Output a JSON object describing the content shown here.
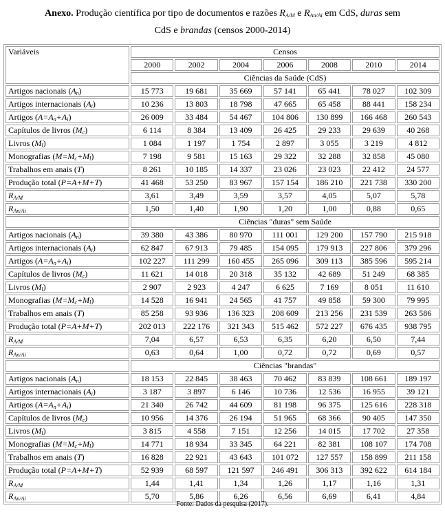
{
  "title": {
    "bold": "Anexo.",
    "line1_a": " Produção científica por tipo de documentos e razões ",
    "r1": "R",
    "r1_sub": "A/M",
    "mid": " e ",
    "r2": "R",
    "r2_sub": "An/Ai",
    "line1_b": " em CdS, ",
    "duras": "duras",
    "line1_c": " sem",
    "line2_a": "CdS e ",
    "brandas": "brandas",
    "line2_b": " (censos 2000-2014)"
  },
  "table": {
    "variables_header": "Variáveis",
    "census_header": "Censos",
    "years": [
      "2000",
      "2002",
      "2004",
      "2006",
      "2008",
      "2010",
      "2014"
    ],
    "row_labels": [
      [
        [
          "Artigos nacionais (",
          ""
        ],
        [
          "A",
          "i"
        ],
        [
          "n",
          "sub"
        ],
        [
          ")",
          ""
        ]
      ],
      [
        [
          "Artigos internacionais (",
          ""
        ],
        [
          "A",
          "i"
        ],
        [
          "i",
          "sub"
        ],
        [
          ")",
          ""
        ]
      ],
      [
        [
          "Artigos (",
          ""
        ],
        [
          "A=A",
          "i"
        ],
        [
          "n",
          "sub"
        ],
        [
          "+A",
          "i"
        ],
        [
          "i",
          "sub"
        ],
        [
          ")",
          ""
        ]
      ],
      [
        [
          "Capítulos de livros (",
          ""
        ],
        [
          "M",
          "i"
        ],
        [
          "c",
          "sub"
        ],
        [
          ")",
          ""
        ]
      ],
      [
        [
          "Livros (",
          ""
        ],
        [
          "M",
          "i"
        ],
        [
          "l",
          "sub"
        ],
        [
          ")",
          ""
        ]
      ],
      [
        [
          "Monografias (",
          ""
        ],
        [
          "M=M",
          "i"
        ],
        [
          "c",
          "sub"
        ],
        [
          "+M",
          "i"
        ],
        [
          "l",
          "sub"
        ],
        [
          ")",
          ""
        ]
      ],
      [
        [
          "Trabalhos em anais (",
          ""
        ],
        [
          "T",
          "i"
        ],
        [
          ")",
          ""
        ]
      ],
      [
        [
          "Produção total (",
          ""
        ],
        [
          "P=A+M+T",
          "i"
        ],
        [
          ")",
          ""
        ]
      ],
      [
        [
          "R",
          "i"
        ],
        [
          "A/M",
          "sub"
        ]
      ],
      [
        [
          "R",
          "i"
        ],
        [
          "An/Ai",
          "sub"
        ]
      ]
    ],
    "sections": [
      {
        "name": "Ciências da Saúde (CdS)",
        "rows": [
          [
            "15 773",
            "19 681",
            "35 669",
            "57 141",
            "65 441",
            "78 027",
            "102 309"
          ],
          [
            "10 236",
            "13 803",
            "18 798",
            "47 665",
            "65 458",
            "88 441",
            "158 234"
          ],
          [
            "26 009",
            "33 484",
            "54 467",
            "104 806",
            "130 899",
            "166 468",
            "260 543"
          ],
          [
            "6 114",
            "8 384",
            "13 409",
            "26 425",
            "29 233",
            "29 639",
            "40 268"
          ],
          [
            "1 084",
            "1 197",
            "1 754",
            "2 897",
            "3 055",
            "3 219",
            "4 812"
          ],
          [
            "7 198",
            "9 581",
            "15 163",
            "29 322",
            "32 288",
            "32 858",
            "45 080"
          ],
          [
            "8 261",
            "10 185",
            "14 337",
            "23 026",
            "23 023",
            "22 412",
            "24 577"
          ],
          [
            "41 468",
            "53 250",
            "83 967",
            "157 154",
            "186 210",
            "221 738",
            "330 200"
          ],
          [
            "3,61",
            "3,49",
            "3,59",
            "3,57",
            "4,05",
            "5,07",
            "5,78"
          ],
          [
            "1,50",
            "1,40",
            "1,90",
            "1,20",
            "1,00",
            "0,88",
            "0,65"
          ]
        ]
      },
      {
        "name": "Ciências \"duras\" sem Saúde",
        "rows": [
          [
            "39 380",
            "43 386",
            "80 970",
            "111 001",
            "129 200",
            "157 790",
            "215 918"
          ],
          [
            "62 847",
            "67 913",
            "79 485",
            "154 095",
            "179 913",
            "227 806",
            "379 296"
          ],
          [
            "102 227",
            "111 299",
            "160 455",
            "265 096",
            "309 113",
            "385 596",
            "595 214"
          ],
          [
            "11 621",
            "14 018",
            "20 318",
            "35 132",
            "42 689",
            "51 249",
            "68 385"
          ],
          [
            "2 907",
            "2 923",
            "4 247",
            "6 625",
            "7 169",
            "8 051",
            "11 610"
          ],
          [
            "14 528",
            "16 941",
            "24 565",
            "41 757",
            "49 858",
            "59 300",
            "79 995"
          ],
          [
            "85 258",
            "93 936",
            "136 323",
            "208 609",
            "213 256",
            "231 539",
            "263 586"
          ],
          [
            "202 013",
            "222 176",
            "321 343",
            "515 462",
            "572 227",
            "676 435",
            "938 795"
          ],
          [
            "7,04",
            "6,57",
            "6,53",
            "6,35",
            "6,20",
            "6,50",
            "7,44"
          ],
          [
            "0,63",
            "0,64",
            "1,00",
            "0,72",
            "0,72",
            "0,69",
            "0,57"
          ]
        ]
      },
      {
        "name": "Ciências \"brandas\"",
        "rows": [
          [
            "18 153",
            "22 845",
            "38 463",
            "70 462",
            "83 839",
            "108 661",
            "189 197"
          ],
          [
            "3 187",
            "3 897",
            "6 146",
            "10 736",
            "12 536",
            "16 955",
            "39 121"
          ],
          [
            "21 340",
            "26 742",
            "44 609",
            "81 198",
            "96 375",
            "125 616",
            "228 318"
          ],
          [
            "10 956",
            "14 376",
            "26 194",
            "51 965",
            "68 366",
            "90 405",
            "147 350"
          ],
          [
            "3 815",
            "4 558",
            "7 151",
            "12 256",
            "14 015",
            "17 702",
            "27 358"
          ],
          [
            "14 771",
            "18 934",
            "33 345",
            "64 221",
            "82 381",
            "108 107",
            "174 708"
          ],
          [
            "16 828",
            "22 921",
            "43 643",
            "101 072",
            "127 557",
            "158 899",
            "211 158"
          ],
          [
            "52 939",
            "68 597",
            "121 597",
            "246 491",
            "306 313",
            "392 622",
            "614 184"
          ],
          [
            "1,44",
            "1,41",
            "1,34",
            "1,26",
            "1,17",
            "1,16",
            "1,31"
          ],
          [
            "5,70",
            "5,86",
            "6,26",
            "6,56",
            "6,69",
            "6,41",
            "4,84"
          ]
        ]
      }
    ]
  },
  "footer": "Fonte: Dados da pesquisa (2017)."
}
